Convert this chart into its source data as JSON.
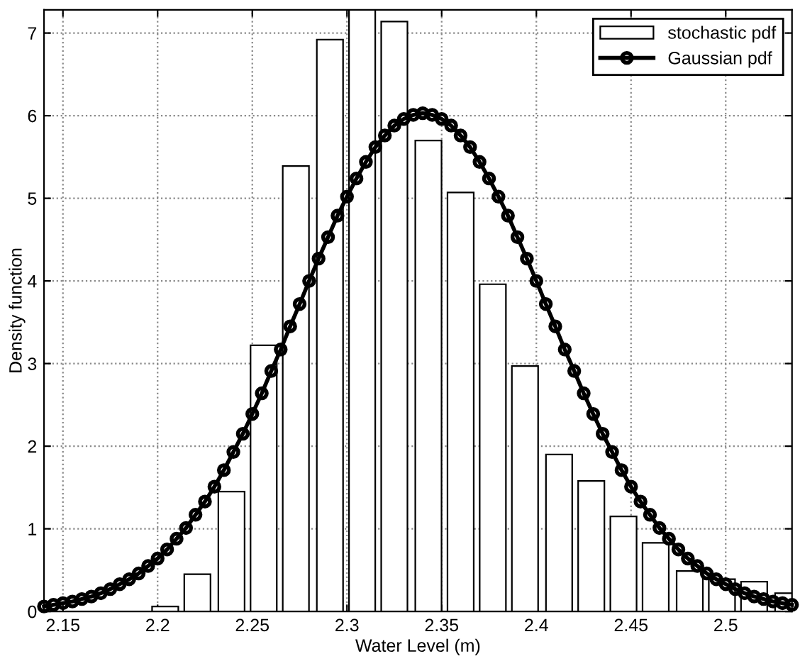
{
  "chart_data": {
    "type": "bar",
    "xlabel": "Water Level (m)",
    "ylabel": "Density function",
    "xlim": [
      2.14,
      2.535
    ],
    "xticks": [
      2.15,
      2.2,
      2.25,
      2.3,
      2.35,
      2.4,
      2.45,
      2.5
    ],
    "ylim": [
      0,
      7.28
    ],
    "yticks": [
      0,
      1,
      2,
      3,
      4,
      5,
      6,
      7
    ],
    "grid": true,
    "legend": "top right",
    "series": [
      {
        "name": "stochastic pdf",
        "color": "#ffffff",
        "x": [
          2.204,
          2.221,
          2.239,
          2.256,
          2.273,
          2.291,
          2.308,
          2.325,
          2.343,
          2.36,
          2.377,
          2.394,
          2.412,
          2.429,
          2.446,
          2.463,
          2.481,
          2.498,
          2.515,
          2.533
        ],
        "values": [
          0.06,
          0.45,
          1.45,
          3.22,
          5.39,
          6.92,
          7.28,
          7.14,
          5.7,
          5.07,
          3.96,
          2.97,
          1.9,
          1.58,
          1.15,
          0.83,
          0.49,
          0.39,
          0.36,
          0.22
        ]
      },
      {
        "name": "Gaussian pdf",
        "type": "line",
        "color": "#000000",
        "marker": "circle",
        "line_style": "solid",
        "x": [
          2.14,
          2.145,
          2.15,
          2.155,
          2.16,
          2.165,
          2.17,
          2.175,
          2.18,
          2.185,
          2.19,
          2.195,
          2.2,
          2.205,
          2.21,
          2.215,
          2.22,
          2.225,
          2.23,
          2.235,
          2.24,
          2.245,
          2.25,
          2.255,
          2.26,
          2.265,
          2.27,
          2.275,
          2.28,
          2.285,
          2.29,
          2.295,
          2.3,
          2.305,
          2.31,
          2.315,
          2.32,
          2.325,
          2.33,
          2.335,
          2.34,
          2.345,
          2.35,
          2.355,
          2.36,
          2.365,
          2.37,
          2.375,
          2.38,
          2.385,
          2.39,
          2.395,
          2.4,
          2.405,
          2.41,
          2.415,
          2.42,
          2.425,
          2.43,
          2.435,
          2.44,
          2.445,
          2.45,
          2.455,
          2.46,
          2.465,
          2.47,
          2.475,
          2.48,
          2.485,
          2.49,
          2.495,
          2.5,
          2.505,
          2.51,
          2.515,
          2.52,
          2.525,
          2.53,
          2.535
        ],
        "values": [
          0.06,
          0.08,
          0.1,
          0.12,
          0.15,
          0.18,
          0.22,
          0.27,
          0.33,
          0.39,
          0.46,
          0.55,
          0.64,
          0.75,
          0.88,
          1.01,
          1.17,
          1.33,
          1.51,
          1.71,
          1.93,
          2.15,
          2.39,
          2.64,
          2.91,
          3.17,
          3.45,
          3.72,
          4.0,
          4.27,
          4.53,
          4.79,
          5.02,
          5.24,
          5.44,
          5.62,
          5.76,
          5.88,
          5.96,
          6.01,
          6.03,
          6.01,
          5.96,
          5.88,
          5.76,
          5.62,
          5.44,
          5.24,
          5.02,
          4.79,
          4.53,
          4.27,
          4.0,
          3.72,
          3.45,
          3.17,
          2.91,
          2.64,
          2.39,
          2.15,
          1.93,
          1.71,
          1.51,
          1.33,
          1.17,
          1.01,
          0.88,
          0.75,
          0.64,
          0.55,
          0.46,
          0.39,
          0.33,
          0.27,
          0.22,
          0.18,
          0.15,
          0.12,
          0.1,
          0.08
        ]
      }
    ]
  }
}
